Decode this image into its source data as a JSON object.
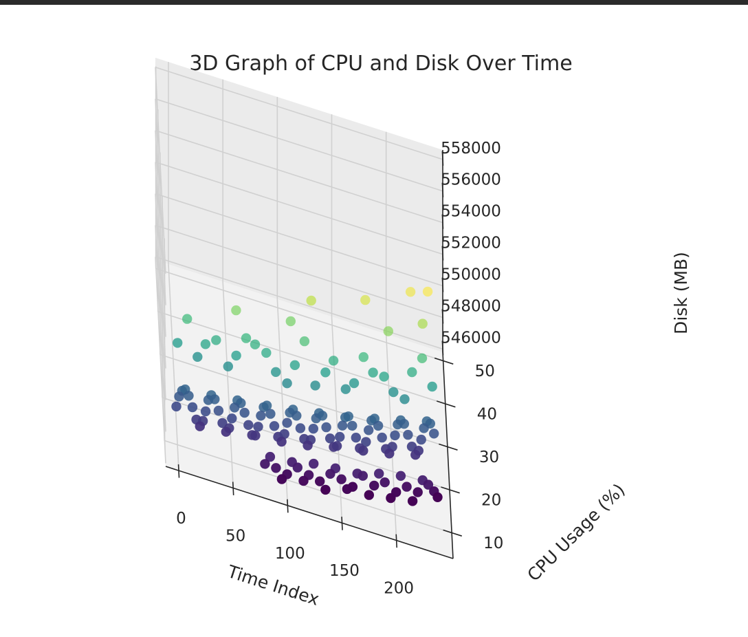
{
  "chart_data": {
    "type": "scatter",
    "projection": "3d",
    "title": "3D Graph of CPU and Disk Over Time",
    "xlabel": "Time Index",
    "ylabel": "CPU Usage (%)",
    "zlabel": "Disk (MB)",
    "xlim": [
      -12,
      252
    ],
    "ylim": [
      4,
      52
    ],
    "zlim": [
      545800,
      558600
    ],
    "xticks": [
      0,
      50,
      100,
      150,
      200
    ],
    "yticks": [
      10,
      20,
      30,
      40,
      50
    ],
    "zticks": [
      546000,
      548000,
      550000,
      552000,
      554000,
      556000,
      558000
    ],
    "colormap": "viridis",
    "color_by": "CPU Usage (%)",
    "grid": true,
    "points": [
      [
        0,
        15.2,
        546810
      ],
      [
        3,
        17.7,
        546828
      ],
      [
        6,
        19.2,
        546846
      ],
      [
        9,
        19.7,
        546865
      ],
      [
        12,
        18.4,
        546884
      ],
      [
        15,
        15.9,
        546904
      ],
      [
        18,
        13.2,
        546924
      ],
      [
        21,
        11.8,
        546944
      ],
      [
        24,
        13.2,
        546966
      ],
      [
        27,
        15.6,
        546987
      ],
      [
        30,
        18.4,
        547009
      ],
      [
        33,
        19.7,
        547032
      ],
      [
        36,
        18.9,
        547055
      ],
      [
        39,
        16.4,
        547079
      ],
      [
        42,
        13.7,
        547103
      ],
      [
        45,
        11.8,
        547128
      ],
      [
        48,
        12.8,
        547153
      ],
      [
        51,
        15.2,
        547179
      ],
      [
        54,
        17.9,
        547205
      ],
      [
        57,
        19.7,
        547232
      ],
      [
        60,
        19.2,
        547259
      ],
      [
        63,
        17.1,
        547287
      ],
      [
        66,
        14.4,
        547316
      ],
      [
        69,
        12.2,
        547345
      ],
      [
        72,
        12.2,
        547374
      ],
      [
        75,
        14.4,
        547404
      ],
      [
        78,
        17.1,
        547435
      ],
      [
        81,
        19.2,
        547466
      ],
      [
        84,
        19.7,
        547498
      ],
      [
        87,
        17.9,
        547530
      ],
      [
        90,
        15.2,
        547563
      ],
      [
        93,
        12.8,
        547596
      ],
      [
        96,
        11.8,
        547630
      ],
      [
        99,
        13.7,
        547664
      ],
      [
        102,
        16.4,
        547699
      ],
      [
        105,
        18.9,
        547735
      ],
      [
        108,
        19.7,
        547771
      ],
      [
        111,
        18.4,
        547807
      ],
      [
        114,
        15.6,
        547845
      ],
      [
        117,
        13.2,
        547883
      ],
      [
        120,
        11.8,
        547921
      ],
      [
        123,
        13.2,
        547960
      ],
      [
        126,
        15.9,
        547999
      ],
      [
        129,
        18.4,
        548039
      ],
      [
        132,
        19.7,
        548080
      ],
      [
        135,
        19.2,
        548121
      ],
      [
        138,
        16.6,
        548163
      ],
      [
        141,
        14.1,
        548205
      ],
      [
        144,
        12.2,
        548248
      ],
      [
        147,
        12.5,
        548292
      ],
      [
        150,
        14.7,
        548336
      ],
      [
        153,
        17.4,
        548380
      ],
      [
        156,
        19.4,
        548426
      ],
      [
        159,
        19.7,
        548472
      ],
      [
        162,
        17.6,
        548518
      ],
      [
        165,
        14.9,
        548565
      ],
      [
        168,
        12.5,
        548613
      ],
      [
        171,
        12.0,
        548661
      ],
      [
        174,
        14.1,
        548710
      ],
      [
        177,
        16.9,
        548759
      ],
      [
        180,
        19.2,
        548809
      ],
      [
        183,
        19.7,
        548860
      ],
      [
        186,
        18.1,
        548911
      ],
      [
        189,
        15.4,
        548963
      ],
      [
        192,
        12.8,
        549015
      ],
      [
        195,
        11.8,
        549068
      ],
      [
        198,
        13.4,
        549122
      ],
      [
        201,
        16.1,
        549176
      ],
      [
        204,
        18.7,
        549230
      ],
      [
        207,
        19.7,
        549286
      ],
      [
        210,
        18.9,
        549342
      ],
      [
        213,
        16.4,
        549398
      ],
      [
        216,
        13.7,
        549455
      ],
      [
        219,
        11.8,
        549513
      ],
      [
        222,
        12.8,
        549571
      ],
      [
        225,
        15.4,
        549630
      ],
      [
        228,
        18.1,
        549689
      ],
      [
        231,
        19.7,
        549749
      ],
      [
        234,
        19.2,
        549810
      ],
      [
        237,
        16.9,
        549871
      ],
      [
        4,
        30.0,
        546900
      ],
      [
        22,
        28.0,
        546950
      ],
      [
        40,
        33.0,
        547050
      ],
      [
        58,
        30.5,
        547150
      ],
      [
        76,
        34.0,
        547300
      ],
      [
        94,
        28.5,
        547450
      ],
      [
        112,
        31.0,
        547600
      ],
      [
        130,
        27.0,
        547800
      ],
      [
        148,
        33.5,
        548000
      ],
      [
        166,
        29.0,
        548200
      ],
      [
        184,
        32.0,
        548450
      ],
      [
        202,
        28.0,
        548700
      ],
      [
        220,
        33.0,
        549000
      ],
      [
        238,
        30.0,
        549300
      ],
      [
        14,
        36.0,
        547000
      ],
      [
        68,
        35.0,
        547250
      ],
      [
        122,
        37.0,
        547700
      ],
      [
        176,
        35.5,
        548300
      ],
      [
        230,
        36.5,
        549150
      ],
      [
        50,
        27.5,
        547100
      ],
      [
        104,
        26.5,
        547500
      ],
      [
        158,
        27.5,
        548050
      ],
      [
        212,
        26.8,
        548800
      ],
      [
        30,
        31.5,
        546980
      ],
      [
        86,
        32.5,
        547400
      ],
      [
        140,
        30.5,
        547900
      ],
      [
        194,
        31.5,
        548550
      ],
      [
        110,
        40.5,
        547750
      ],
      [
        60,
        41.0,
        547200
      ],
      [
        200,
        42.0,
        548700
      ],
      [
        232,
        44.5,
        549200
      ],
      [
        180,
        48.0,
        548600
      ],
      [
        130,
        46.0,
        548000
      ],
      [
        222,
        50.0,
        549500
      ],
      [
        238,
        51.0,
        549600
      ],
      [
        80,
        8.0,
        546900
      ],
      [
        90,
        7.5,
        547000
      ],
      [
        100,
        6.5,
        547100
      ],
      [
        110,
        8.5,
        547200
      ],
      [
        120,
        7.0,
        547350
      ],
      [
        130,
        6.0,
        547450
      ],
      [
        140,
        8.0,
        547600
      ],
      [
        150,
        7.0,
        547750
      ],
      [
        160,
        5.5,
        547900
      ],
      [
        170,
        8.5,
        548000
      ],
      [
        180,
        6.5,
        548150
      ],
      [
        190,
        7.5,
        548300
      ],
      [
        200,
        5.5,
        548450
      ],
      [
        210,
        7.0,
        548600
      ],
      [
        220,
        6.0,
        548750
      ],
      [
        230,
        8.0,
        548900
      ],
      [
        238,
        5.0,
        549100
      ],
      [
        85,
        9.5,
        547050
      ],
      [
        95,
        5.5,
        546950
      ],
      [
        105,
        9.0,
        547300
      ],
      [
        115,
        6.0,
        547150
      ],
      [
        125,
        9.5,
        547500
      ],
      [
        135,
        5.0,
        547300
      ],
      [
        145,
        9.5,
        547650
      ],
      [
        155,
        5.5,
        547650
      ],
      [
        165,
        9.0,
        547900
      ],
      [
        175,
        5.0,
        547850
      ],
      [
        185,
        9.5,
        548200
      ],
      [
        195,
        5.0,
        548100
      ],
      [
        205,
        9.5,
        548500
      ],
      [
        215,
        5.0,
        548350
      ],
      [
        225,
        9.0,
        548800
      ],
      [
        235,
        6.5,
        549000
      ]
    ]
  }
}
